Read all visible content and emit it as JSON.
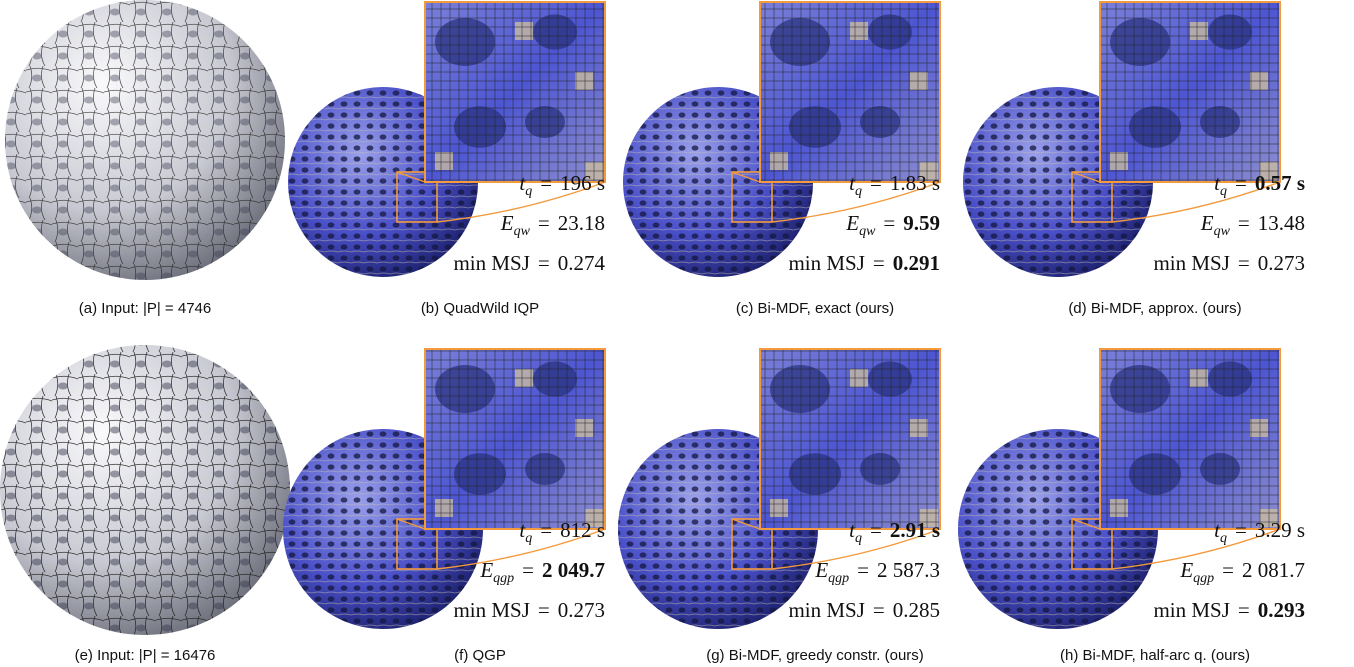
{
  "panels": [
    {
      "caption": "(a) Input: |P| = 4746"
    },
    {
      "caption": "(b) QuadWild IQP",
      "metrics": [
        {
          "symbol": "t",
          "sub": "q",
          "rel": "=",
          "value": "196 s",
          "bold": false,
          "italic": true
        },
        {
          "symbol": "E",
          "sub": "qw",
          "rel": "=",
          "value": "23.18",
          "bold": false,
          "italic": true
        },
        {
          "symbol": "min MSJ",
          "rel": "=",
          "value": "0.274",
          "bold": false,
          "italic": false
        }
      ]
    },
    {
      "caption": "(c) Bi-MDF, exact (ours)",
      "metrics": [
        {
          "symbol": "t",
          "sub": "q",
          "rel": "=",
          "value": "1.83 s",
          "bold": false,
          "italic": true
        },
        {
          "symbol": "E",
          "sub": "qw",
          "rel": "=",
          "value": "9.59",
          "bold": true,
          "italic": true
        },
        {
          "symbol": "min MSJ",
          "rel": "=",
          "value": "0.291",
          "bold": true,
          "italic": false
        }
      ]
    },
    {
      "caption": "(d) Bi-MDF, approx. (ours)",
      "metrics": [
        {
          "symbol": "t",
          "sub": "q",
          "rel": "=",
          "value": "0.57 s",
          "bold": true,
          "italic": true
        },
        {
          "symbol": "E",
          "sub": "qw",
          "rel": "=",
          "value": "13.48",
          "bold": false,
          "italic": true
        },
        {
          "symbol": "min MSJ",
          "rel": "=",
          "value": "0.273",
          "bold": false,
          "italic": false
        }
      ]
    },
    {
      "caption": "(e) Input: |P| = 16476"
    },
    {
      "caption": "(f) QGP",
      "metrics": [
        {
          "symbol": "t",
          "sub": "q",
          "rel": "=",
          "value": "812 s",
          "bold": false,
          "italic": true
        },
        {
          "symbol": "E",
          "sub": "qgp",
          "rel": "=",
          "value": "2 049.7",
          "bold": true,
          "italic": true
        },
        {
          "symbol": "min MSJ",
          "rel": "=",
          "value": "0.273",
          "bold": false,
          "italic": false
        }
      ]
    },
    {
      "caption": "(g) Bi-MDF, greedy constr. (ours)",
      "metrics": [
        {
          "symbol": "t",
          "sub": "q",
          "rel": "=",
          "value": "2.91 s",
          "bold": true,
          "italic": true
        },
        {
          "symbol": "E",
          "sub": "qgp",
          "rel": "=",
          "value": "2 587.3",
          "bold": false,
          "italic": true
        },
        {
          "symbol": "min MSJ",
          "rel": "=",
          "value": "0.285",
          "bold": false,
          "italic": false
        }
      ]
    },
    {
      "caption": "(h) Bi-MDF, half-arc q. (ours)",
      "metrics": [
        {
          "symbol": "t",
          "sub": "q",
          "rel": "=",
          "value": "3.29 s",
          "bold": false,
          "italic": true
        },
        {
          "symbol": "E",
          "sub": "qgp",
          "rel": "=",
          "value": "2 081.7",
          "bold": false,
          "italic": true
        },
        {
          "symbol": "min MSJ",
          "rel": "=",
          "value": "0.293",
          "bold": true,
          "italic": false
        }
      ]
    }
  ]
}
